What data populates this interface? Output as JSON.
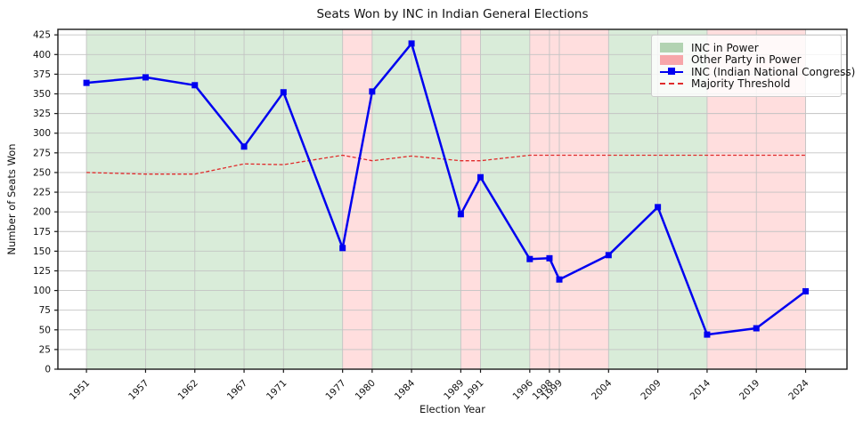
{
  "title": "Seats Won by INC in Indian General Elections",
  "xlabel": "Election Year",
  "ylabel": "Number of Seats Won",
  "legend": {
    "inc_power": "INC in Power",
    "other_power": "Other Party in Power",
    "inc_line": "INC (Indian National Congress)",
    "threshold": "Majority Threshold"
  },
  "colors": {
    "inc_line": "#0000f0",
    "threshold": "#e02b2b",
    "green_band": "#008000",
    "red_band": "#ff1f1f",
    "band_opacity": 0.15,
    "legend_green_swatch": "#b2d3b2",
    "legend_red_swatch": "#f7a6aa",
    "grid": "#c3c3c3",
    "spine": "#1a1a1a"
  },
  "chart_data": {
    "type": "line",
    "title": "Seats Won by INC in Indian General Elections",
    "xlabel": "Election Year",
    "ylabel": "Number of Seats Won",
    "x": [
      1951,
      1957,
      1962,
      1967,
      1971,
      1977,
      1980,
      1984,
      1989,
      1991,
      1996,
      1998,
      1999,
      2004,
      2009,
      2014,
      2019,
      2024
    ],
    "series": [
      {
        "name": "INC (Indian National Congress)",
        "values": [
          364,
          371,
          361,
          283,
          352,
          154,
          353,
          414,
          197,
          244,
          140,
          141,
          114,
          145,
          206,
          44,
          52,
          99
        ],
        "style": "solid",
        "marker": "square"
      },
      {
        "name": "Majority Threshold",
        "values": [
          250,
          248,
          248,
          261,
          260,
          272,
          265,
          271,
          265,
          265,
          272,
          272,
          272,
          272,
          272,
          272,
          272,
          272
        ],
        "style": "dashed",
        "marker": "none"
      }
    ],
    "bands": [
      {
        "label": "INC in Power",
        "color": "green",
        "spans": [
          [
            1951,
            1977
          ],
          [
            1980,
            1989
          ],
          [
            1991,
            1996
          ],
          [
            2004,
            2014
          ]
        ]
      },
      {
        "label": "Other Party in Power",
        "color": "red",
        "spans": [
          [
            1977,
            1980
          ],
          [
            1989,
            1991
          ],
          [
            1996,
            2004
          ],
          [
            2014,
            2024
          ]
        ]
      }
    ],
    "xlim": [
      1948.1,
      2028.2
    ],
    "ylim": [
      0,
      432
    ],
    "yticks": [
      0,
      25,
      50,
      75,
      100,
      125,
      150,
      175,
      200,
      225,
      250,
      275,
      300,
      325,
      350,
      375,
      400,
      425
    ],
    "grid": true,
    "legend_position": "upper right"
  }
}
